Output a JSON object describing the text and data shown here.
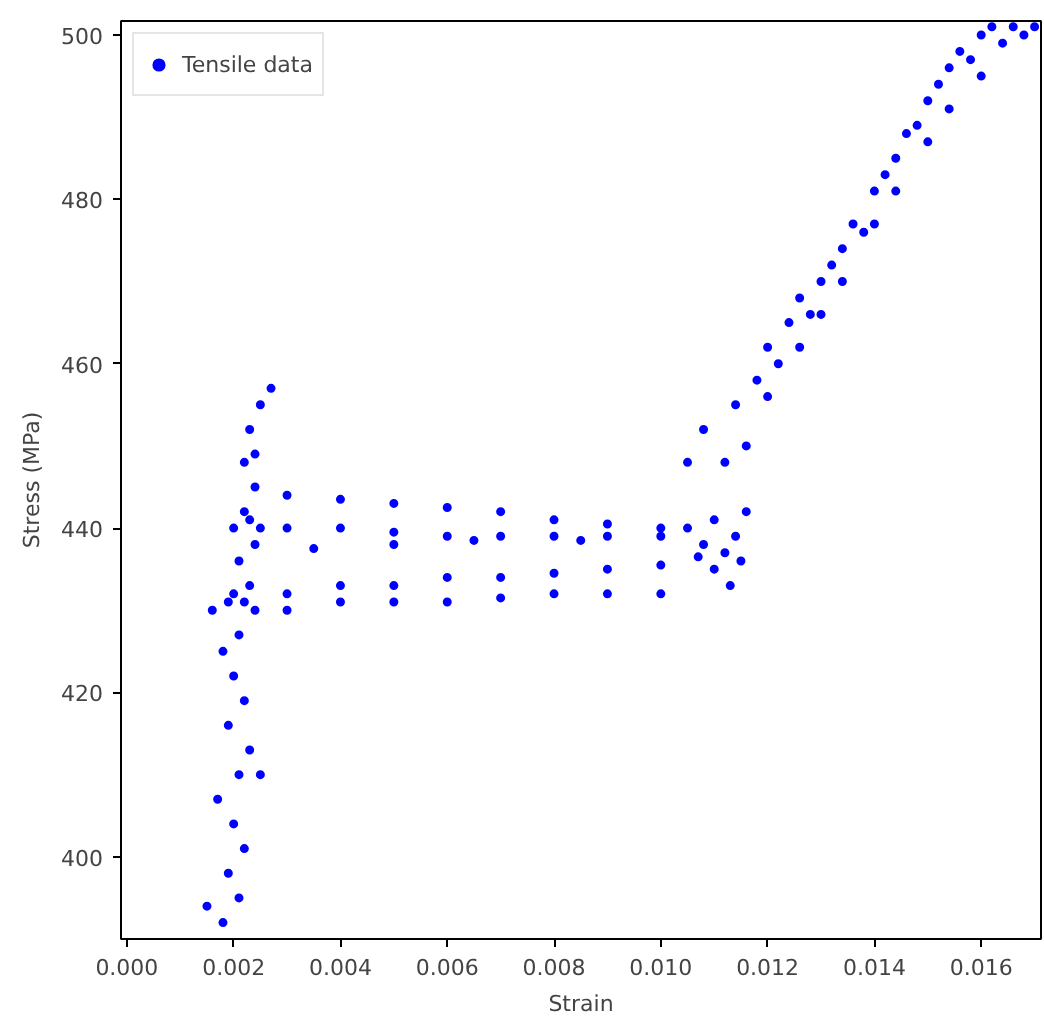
{
  "chart_data": {
    "type": "scatter",
    "xlabel": "Strain",
    "ylabel": "Stress (MPa)",
    "xlim": [
      -0.00011,
      0.01712
    ],
    "ylim": [
      390,
      501.7
    ],
    "xticks": [
      {
        "value": 0,
        "label": "0.000"
      },
      {
        "value": 0.002,
        "label": "0.002"
      },
      {
        "value": 0.004,
        "label": "0.004"
      },
      {
        "value": 0.006,
        "label": "0.006"
      },
      {
        "value": 0.008,
        "label": "0.008"
      },
      {
        "value": 0.01,
        "label": "0.010"
      },
      {
        "value": 0.012,
        "label": "0.012"
      },
      {
        "value": 0.014,
        "label": "0.014"
      },
      {
        "value": 0.016,
        "label": "0.016"
      }
    ],
    "yticks": [
      400,
      420,
      440,
      460,
      480,
      500
    ],
    "grid": false,
    "legend": "top left",
    "marker": "circle",
    "series": [
      {
        "name": "Tensile data",
        "color": "#0000ff",
        "x": [
          0.0018,
          0.0021,
          0.0019,
          0.0022,
          0.002,
          0.0017,
          0.0021,
          0.0023,
          0.0019,
          0.0022,
          0.002,
          0.0018,
          0.0021,
          0.0016,
          0.0019,
          0.0022,
          0.0024,
          0.002,
          0.0023,
          0.0021,
          0.0024,
          0.002,
          0.0023,
          0.0025,
          0.0022,
          0.0024,
          0.0022,
          0.0024,
          0.0023,
          0.0025,
          0.0027,
          0.0015,
          0.0025,
          0.003,
          0.004,
          0.005,
          0.006,
          0.007,
          0.008,
          0.009,
          0.01,
          0.003,
          0.004,
          0.005,
          0.006,
          0.007,
          0.008,
          0.009,
          0.01,
          0.0035,
          0.005,
          0.0065,
          0.0085,
          0.003,
          0.004,
          0.005,
          0.006,
          0.007,
          0.008,
          0.009,
          0.01,
          0.003,
          0.004,
          0.005,
          0.006,
          0.007,
          0.008,
          0.009,
          0.01,
          0.0105,
          0.011,
          0.0108,
          0.0112,
          0.0115,
          0.011,
          0.0113,
          0.0107,
          0.0114,
          0.0116,
          0.0105,
          0.0108,
          0.0112,
          0.0114,
          0.0116,
          0.0118,
          0.012,
          0.012,
          0.0122,
          0.0124,
          0.0126,
          0.0126,
          0.0128,
          0.013,
          0.013,
          0.0132,
          0.0134,
          0.0134,
          0.0136,
          0.0138,
          0.014,
          0.014,
          0.0142,
          0.0144,
          0.0144,
          0.0146,
          0.0148,
          0.015,
          0.015,
          0.0152,
          0.0154,
          0.0154,
          0.0156,
          0.0158,
          0.016,
          0.016,
          0.0162,
          0.0164,
          0.0166,
          0.0168,
          0.017
        ],
        "values": [
          392,
          395,
          398,
          401,
          404,
          407,
          410,
          413,
          416,
          419,
          422,
          425,
          427,
          430,
          431,
          431,
          430,
          432,
          433,
          436,
          438,
          440,
          441,
          440,
          442,
          445,
          448,
          449,
          452,
          455,
          457,
          394,
          410,
          444,
          443.5,
          443,
          442.5,
          442,
          441,
          440.5,
          440,
          440,
          440,
          439.5,
          439,
          439,
          439,
          439,
          439,
          437.5,
          438,
          438.5,
          438.5,
          430,
          431,
          431,
          431,
          431.5,
          432,
          432,
          432,
          432,
          433,
          433,
          434,
          434,
          434.5,
          435,
          435.5,
          440,
          441,
          438,
          437,
          436,
          435,
          433,
          436.5,
          439,
          442,
          448,
          452,
          448,
          455,
          450,
          458,
          456,
          462,
          460,
          465,
          462,
          468,
          466,
          470,
          466,
          472,
          474,
          470,
          477,
          476,
          481,
          477,
          483,
          485,
          481,
          488,
          489,
          492,
          487,
          494,
          496,
          491,
          498,
          497,
          500,
          495,
          501,
          499,
          501,
          500,
          501
        ]
      }
    ]
  }
}
